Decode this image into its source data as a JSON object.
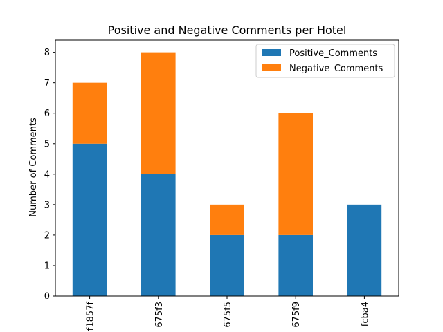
{
  "chart_data": {
    "type": "bar",
    "stacked": true,
    "title": "Positive and Negative Comments per Hotel",
    "xlabel": "",
    "ylabel": "Number of Comments",
    "categories": [
      "f1857f",
      "675f3",
      "675f5",
      "675f9",
      "fcba4"
    ],
    "series": [
      {
        "name": "Positive_Comments",
        "color": "#1f77b4",
        "values": [
          5,
          4,
          2,
          2,
          3
        ]
      },
      {
        "name": "Negative_Comments",
        "color": "#ff7f0e",
        "values": [
          2,
          4,
          1,
          4,
          0
        ]
      }
    ],
    "ylim": [
      0,
      8.4
    ],
    "yticks": [
      0,
      1,
      2,
      3,
      4,
      5,
      6,
      7,
      8
    ],
    "grid": false,
    "legend": "top-right",
    "xtick_rotation": 90
  }
}
